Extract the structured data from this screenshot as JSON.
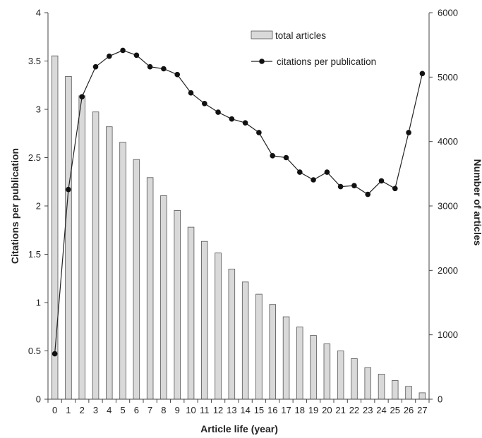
{
  "chart_data": {
    "type": "bar+line",
    "title": "",
    "xlabel": "Article life (year)",
    "ylabel_left": "Citations per publication",
    "ylabel_right": "Number of articles",
    "x": [
      0,
      1,
      2,
      3,
      4,
      5,
      6,
      7,
      8,
      9,
      10,
      11,
      12,
      13,
      14,
      15,
      16,
      17,
      18,
      19,
      20,
      21,
      22,
      23,
      24,
      25,
      26,
      27
    ],
    "x_tick_labels": [
      "0",
      "1",
      "2",
      "3",
      "4",
      "5",
      "6",
      "7",
      "8",
      "9",
      "10",
      "11",
      "12",
      "13",
      "14",
      "15",
      "16",
      "17",
      "18",
      "19",
      "20",
      "21",
      "22",
      "23",
      "24",
      "25",
      "26",
      "27"
    ],
    "y_left_ticks": [
      "0",
      "0.5",
      "1",
      "1.5",
      "2",
      "2.5",
      "3",
      "3.5",
      "4"
    ],
    "y_left_lim": [
      0,
      4
    ],
    "y_right_ticks": [
      "0",
      "1000",
      "2000",
      "3000",
      "4000",
      "5000",
      "6000"
    ],
    "y_right_lim": [
      0,
      6000
    ],
    "grid": false,
    "legend_placement": "top-right",
    "series": [
      {
        "name": "total articles",
        "type": "bar",
        "axis": "right",
        "values": [
          5330,
          5010,
          4710,
          4460,
          4230,
          3990,
          3720,
          3440,
          3160,
          2930,
          2670,
          2450,
          2270,
          2020,
          1820,
          1630,
          1470,
          1280,
          1120,
          990,
          860,
          750,
          630,
          490,
          390,
          290,
          200,
          100
        ],
        "color": "#d9d9d9"
      },
      {
        "name": "citations per publication",
        "type": "line",
        "axis": "left",
        "values": [
          0.47,
          2.17,
          3.13,
          3.44,
          3.55,
          3.61,
          3.56,
          3.44,
          3.42,
          3.36,
          3.17,
          3.06,
          2.97,
          2.9,
          2.86,
          2.76,
          2.52,
          2.5,
          2.35,
          2.27,
          2.35,
          2.2,
          2.21,
          2.12,
          2.26,
          2.18,
          2.76,
          3.37
        ],
        "color": "#111111"
      }
    ]
  }
}
